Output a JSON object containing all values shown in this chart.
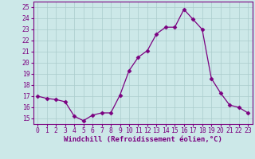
{
  "x": [
    0,
    1,
    2,
    3,
    4,
    5,
    6,
    7,
    8,
    9,
    10,
    11,
    12,
    13,
    14,
    15,
    16,
    17,
    18,
    19,
    20,
    21,
    22,
    23
  ],
  "y": [
    17.0,
    16.8,
    16.7,
    16.5,
    15.2,
    14.8,
    15.3,
    15.5,
    15.5,
    17.1,
    19.3,
    20.5,
    21.1,
    22.6,
    23.2,
    23.2,
    24.8,
    23.9,
    23.0,
    18.6,
    17.3,
    16.2,
    16.0,
    15.5
  ],
  "line_color": "#7B0080",
  "marker": "D",
  "marker_size": 2.5,
  "bg_color": "#cce8e8",
  "grid_color": "#aacccc",
  "xlabel": "Windchill (Refroidissement éolien,°C)",
  "ylim": [
    14.5,
    25.5
  ],
  "yticks": [
    15,
    16,
    17,
    18,
    19,
    20,
    21,
    22,
    23,
    24,
    25
  ],
  "xticks": [
    0,
    1,
    2,
    3,
    4,
    5,
    6,
    7,
    8,
    9,
    10,
    11,
    12,
    13,
    14,
    15,
    16,
    17,
    18,
    19,
    20,
    21,
    22,
    23
  ],
  "tick_label_color": "#7B0080",
  "tick_label_fontsize": 5.8,
  "xlabel_fontsize": 6.5,
  "xlabel_color": "#7B0080",
  "spine_color": "#7B0080",
  "linewidth": 0.9
}
